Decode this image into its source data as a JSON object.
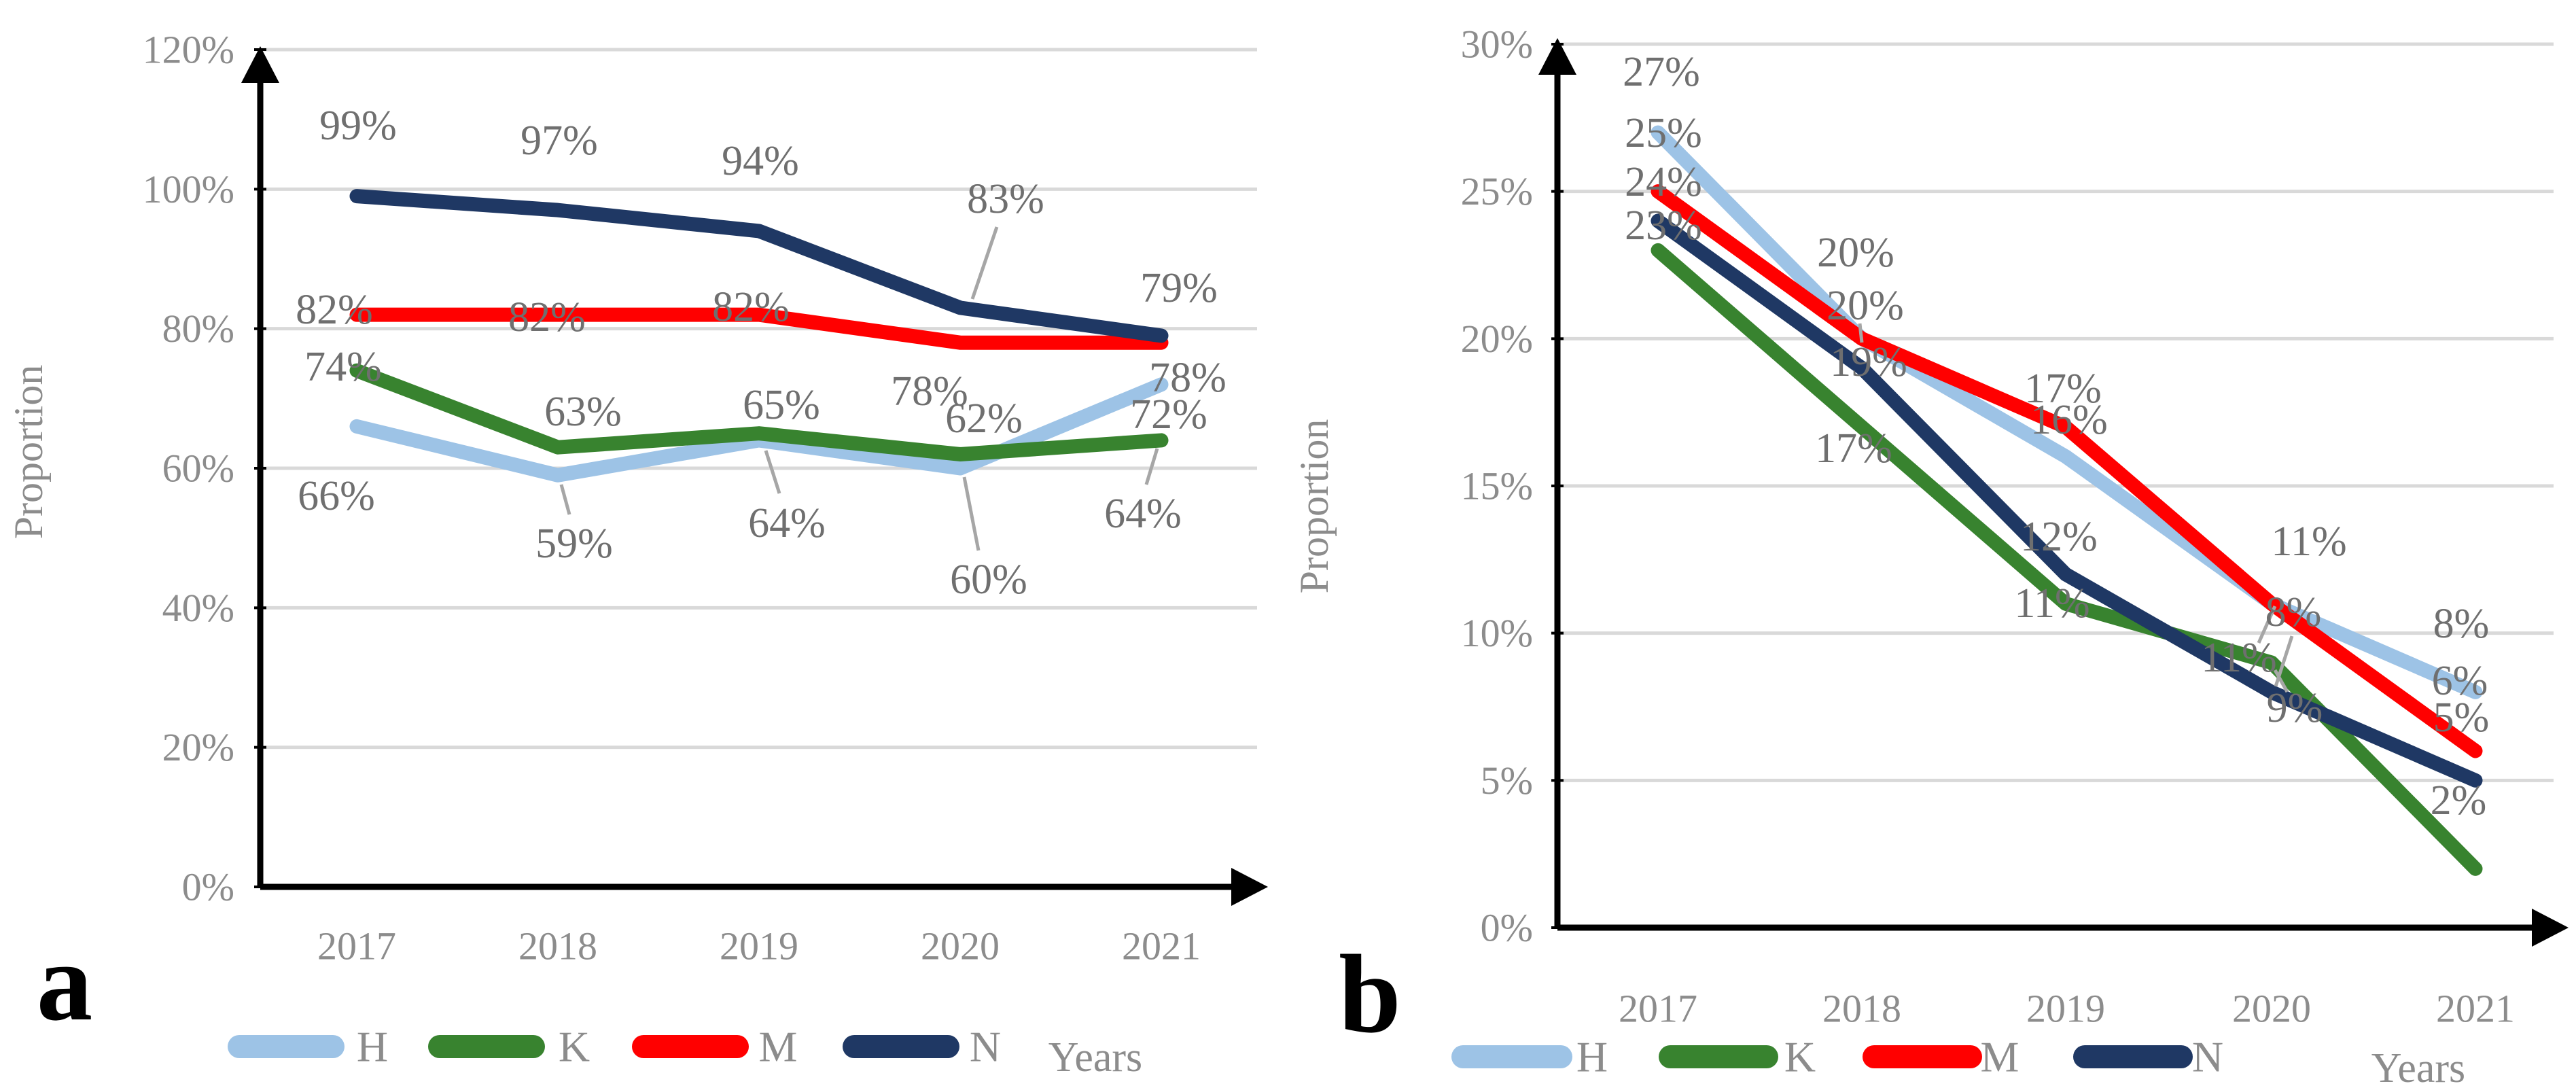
{
  "figure": {
    "background": "#FFFFFF",
    "description_visible_text_only": true
  },
  "styles": {
    "grid_color": "#D9D9D9",
    "axis_color": "#000000",
    "tick_text_color": "#8C8C8C",
    "data_label_color": "#6F6F6F",
    "leader_color": "#A6A6A6",
    "panel_letter_color": "#000000"
  },
  "legend": {
    "items": [
      {
        "label": "H",
        "color": "#9DC3E6"
      },
      {
        "label": "K",
        "color": "#38832F"
      },
      {
        "label": "M",
        "color": "#FF0000"
      },
      {
        "label": "N",
        "color": "#1F3864"
      }
    ]
  },
  "chart_data": [
    {
      "panel_label": "a",
      "type": "line",
      "title": "",
      "xlabel": "Years",
      "ylabel": "Proportion",
      "x": [
        "2017",
        "2018",
        "2019",
        "2020",
        "2021"
      ],
      "ylim": [
        0,
        120
      ],
      "ytick_step": 20,
      "y_tick_labels": [
        "0%",
        "20%",
        "40%",
        "60%",
        "80%",
        "100%",
        "120%"
      ],
      "grid": true,
      "legend_position": "bottom",
      "series": [
        {
          "name": "H",
          "color": "#9DC3E6",
          "values": [
            66,
            59,
            64,
            60,
            72
          ],
          "point_labels": [
            "66%",
            "59%",
            "64%",
            "60%",
            "72%"
          ]
        },
        {
          "name": "K",
          "color": "#38832F",
          "values": [
            74,
            63,
            65,
            62,
            64
          ],
          "point_labels": [
            "74%",
            "63%",
            "65%",
            "62%",
            "64%"
          ]
        },
        {
          "name": "M",
          "color": "#FF0000",
          "values": [
            82,
            82,
            82,
            78,
            78
          ],
          "point_labels": [
            "82%",
            "82%",
            "82%",
            "78%",
            "78%"
          ]
        },
        {
          "name": "N",
          "color": "#1F3864",
          "values": [
            99,
            97,
            94,
            83,
            79
          ],
          "point_labels": [
            "99%",
            "97%",
            "94%",
            "83%",
            "79%"
          ]
        }
      ]
    },
    {
      "panel_label": "b",
      "type": "line",
      "title": "",
      "xlabel": "Years",
      "ylabel": "Proportion",
      "x": [
        "2017",
        "2018",
        "2019",
        "2020",
        "2021"
      ],
      "ylim": [
        0,
        30
      ],
      "ytick_step": 5,
      "y_tick_labels": [
        "0%",
        "5%",
        "10%",
        "15%",
        "20%",
        "25%",
        "30%"
      ],
      "grid": true,
      "legend_position": "bottom",
      "series": [
        {
          "name": "H",
          "color": "#9DC3E6",
          "values": [
            27,
            20,
            16,
            11,
            8
          ],
          "point_labels": [
            "27%",
            "20%",
            "16%",
            "11%",
            "8%"
          ]
        },
        {
          "name": "K",
          "color": "#38832F",
          "values": [
            23,
            17,
            11,
            9,
            2
          ],
          "point_labels": [
            "23%",
            "17%",
            "11%",
            "9%",
            "2%"
          ]
        },
        {
          "name": "M",
          "color": "#FF0000",
          "values": [
            25,
            20,
            17,
            11,
            6
          ],
          "point_labels": [
            "25%",
            "20%",
            "17%",
            "11%",
            "6%"
          ]
        },
        {
          "name": "N",
          "color": "#1F3864",
          "values": [
            24,
            19,
            12,
            8,
            5
          ],
          "point_labels": [
            "24%",
            "19%",
            "12%",
            "8%",
            "5%"
          ]
        }
      ]
    }
  ]
}
